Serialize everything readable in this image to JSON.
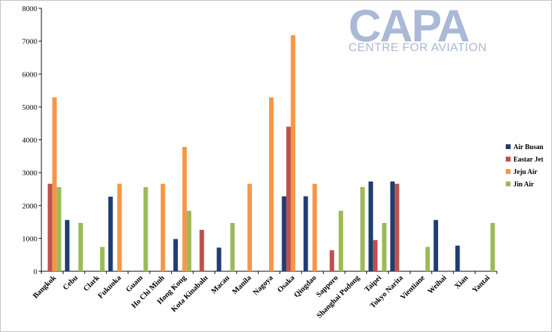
{
  "logo": {
    "main": "CAPA",
    "sub": "CENTRE FOR AVIATION"
  },
  "chart_data": {
    "type": "bar",
    "title": "",
    "xlabel": "",
    "ylabel": "",
    "ylim": [
      0,
      8000
    ],
    "yticks": [
      0,
      1000,
      2000,
      3000,
      4000,
      5000,
      6000,
      7000,
      8000
    ],
    "grid": false,
    "legend_position": "right",
    "categories": [
      "Bangkok",
      "Cebu",
      "Clark",
      "Fukuoka",
      "Guam",
      "Ho Chi Minh",
      "Hong Kong",
      "Kota Kinabalu",
      "Macau",
      "Manila",
      "Nagoya",
      "Osaka",
      "Qingdao",
      "Sapporo",
      "Shanghai Pudong",
      "Taipei",
      "Tokyo Narita",
      "Vientiane",
      "Weihai",
      "Xian",
      "Yantai"
    ],
    "series": [
      {
        "name": "Air Busan",
        "color": "#1f3d73",
        "values": [
          0,
          1560,
          0,
          2270,
          0,
          0,
          980,
          0,
          720,
          0,
          0,
          2280,
          2280,
          0,
          0,
          2730,
          2730,
          0,
          1560,
          780,
          0
        ]
      },
      {
        "name": "Eastar Jet",
        "color": "#c0504d",
        "values": [
          2660,
          0,
          0,
          0,
          0,
          0,
          0,
          1260,
          0,
          0,
          0,
          4400,
          0,
          640,
          0,
          950,
          2660,
          0,
          0,
          0,
          0
        ]
      },
      {
        "name": "Jeju Air",
        "color": "#f79646",
        "values": [
          5290,
          0,
          0,
          2660,
          0,
          2660,
          3780,
          0,
          0,
          2660,
          5290,
          7180,
          2660,
          0,
          0,
          0,
          0,
          0,
          0,
          0,
          0
        ]
      },
      {
        "name": "Jin Air",
        "color": "#9bbb59",
        "values": [
          2560,
          1470,
          740,
          0,
          2560,
          0,
          1840,
          0,
          1470,
          0,
          0,
          0,
          0,
          1840,
          2560,
          1470,
          0,
          740,
          0,
          0,
          1470
        ]
      }
    ]
  }
}
